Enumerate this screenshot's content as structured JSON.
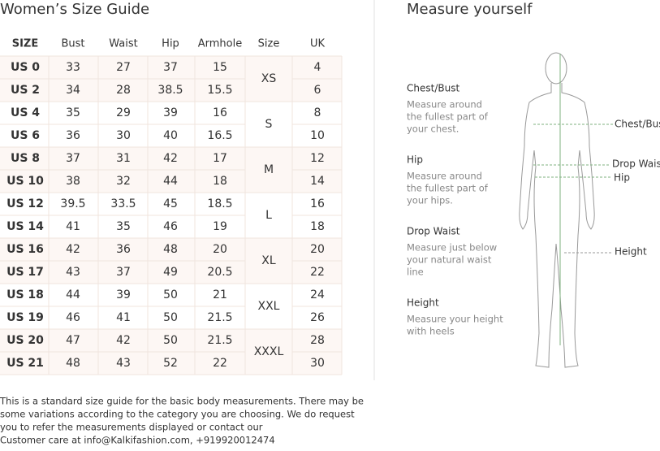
{
  "title": "Women’s Size Guide",
  "table": {
    "header": [
      "SIZE",
      "Bust",
      "Waist",
      "Hip",
      "Armhole",
      "Size",
      "UK"
    ],
    "rows": [
      [
        "US 0",
        33,
        27,
        37,
        15,
        4
      ],
      [
        "US 2",
        34,
        28,
        38.5,
        15.5,
        6
      ],
      [
        "US 4",
        35,
        29,
        39,
        16,
        8
      ],
      [
        "US 6",
        36,
        30,
        40,
        16.5,
        10
      ],
      [
        "US 8",
        37,
        31,
        42,
        17,
        12
      ],
      [
        "US 10",
        38,
        32,
        44,
        18,
        14
      ],
      [
        "US 12",
        39.5,
        33.5,
        45,
        18.5,
        16
      ],
      [
        "US 14",
        41,
        35,
        46,
        19,
        18
      ],
      [
        "US 16",
        42,
        36,
        48,
        20,
        20
      ],
      [
        "US 17",
        43,
        37,
        49,
        20.5,
        22
      ],
      [
        "US 18",
        44,
        39,
        50,
        21,
        24
      ],
      [
        "US 19",
        46,
        41,
        50,
        21.5,
        26
      ],
      [
        "US 20",
        47,
        42,
        50,
        21.5,
        28
      ],
      [
        "US 21",
        48,
        43,
        52,
        22,
        30
      ]
    ],
    "size_groups": [
      "XS",
      "S",
      "M",
      "L",
      "XL",
      "XXL",
      "XXXL"
    ]
  },
  "footer": [
    "This is a standard size guide for the basic body measurements. There may be",
    "some variations according to the category you are choosing. We do request",
    "you to refer the measurements displayed or contact our",
    "Customer care at info@Kalkifashion.com, +919920012474"
  ],
  "measure": {
    "title": "Measure yourself",
    "items": [
      {
        "label": "Chest/Bust",
        "text": [
          "Measure around",
          "the fullest part of",
          "your chest."
        ]
      },
      {
        "label": "Hip",
        "text": [
          "Measure around",
          "the fullest part of",
          "your hips."
        ]
      },
      {
        "label": "Drop Waist",
        "text": [
          "Measure just below",
          "your natural waist",
          "line"
        ]
      },
      {
        "label": "Height",
        "text": [
          "Measure your height",
          "with heels"
        ]
      }
    ],
    "annotations": [
      "Chest/Bust",
      "Drop Waist",
      "Hip",
      "Height"
    ]
  }
}
